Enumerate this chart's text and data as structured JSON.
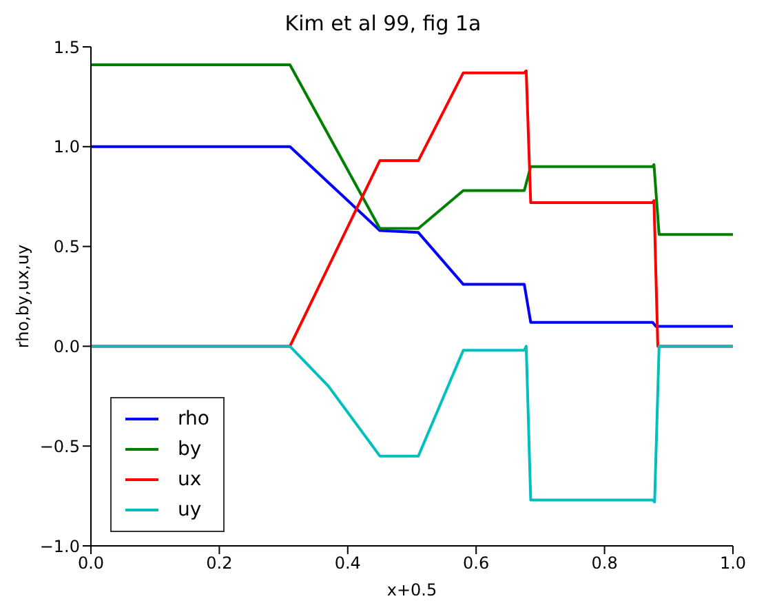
{
  "chart_data": {
    "type": "line",
    "title": "Kim et al 99, fig 1a",
    "xlabel": "x+0.5",
    "ylabel": "rho,by,ux,uy",
    "xlim": [
      0,
      1
    ],
    "ylim": [
      -1,
      1.5
    ],
    "xticks": [
      {
        "value": 0,
        "label": "0.0"
      },
      0.2,
      0.4,
      0.6,
      0.8,
      {
        "value": 1,
        "label": "1.0"
      }
    ],
    "yticks": [
      {
        "value": -1,
        "label": "−1.0"
      },
      -0.5,
      {
        "value": 0,
        "label": "0.0"
      },
      0.5,
      {
        "value": 1,
        "label": "1.0"
      },
      1.5
    ],
    "grid": false,
    "legend": "bottom left",
    "marker": "none",
    "line_style": "solid",
    "series": [
      {
        "name": "rho",
        "color": "#0000ff",
        "x": [
          0,
          0.31,
          0.37,
          0.45,
          0.51,
          0.58,
          0.675,
          0.685,
          0.875,
          0.88,
          1
        ],
        "values": [
          1,
          1,
          0.82,
          0.58,
          0.57,
          0.31,
          0.31,
          0.12,
          0.12,
          0.1,
          0.1
        ]
      },
      {
        "name": "by",
        "color": "#008000",
        "x": [
          0,
          0.31,
          0.45,
          0.51,
          0.58,
          0.675,
          0.685,
          0.875,
          0.877,
          0.885,
          1
        ],
        "values": [
          1.41,
          1.41,
          0.59,
          0.59,
          0.78,
          0.78,
          0.9,
          0.9,
          0.91,
          0.56,
          0.56
        ]
      },
      {
        "name": "ux",
        "color": "#ff0000",
        "x": [
          0,
          0.31,
          0.45,
          0.51,
          0.58,
          0.675,
          0.678,
          0.685,
          0.875,
          0.877,
          0.883,
          1
        ],
        "values": [
          0,
          0,
          0.93,
          0.93,
          1.37,
          1.37,
          1.38,
          0.72,
          0.72,
          0.73,
          0,
          0
        ]
      },
      {
        "name": "uy",
        "color": "#00bfbf",
        "x": [
          0,
          0.31,
          0.37,
          0.45,
          0.51,
          0.58,
          0.675,
          0.678,
          0.685,
          0.875,
          0.878,
          0.885,
          1
        ],
        "values": [
          0,
          0,
          -0.2,
          -0.55,
          -0.55,
          -0.02,
          -0.02,
          0,
          -0.77,
          -0.77,
          -0.78,
          0,
          0
        ]
      }
    ]
  }
}
